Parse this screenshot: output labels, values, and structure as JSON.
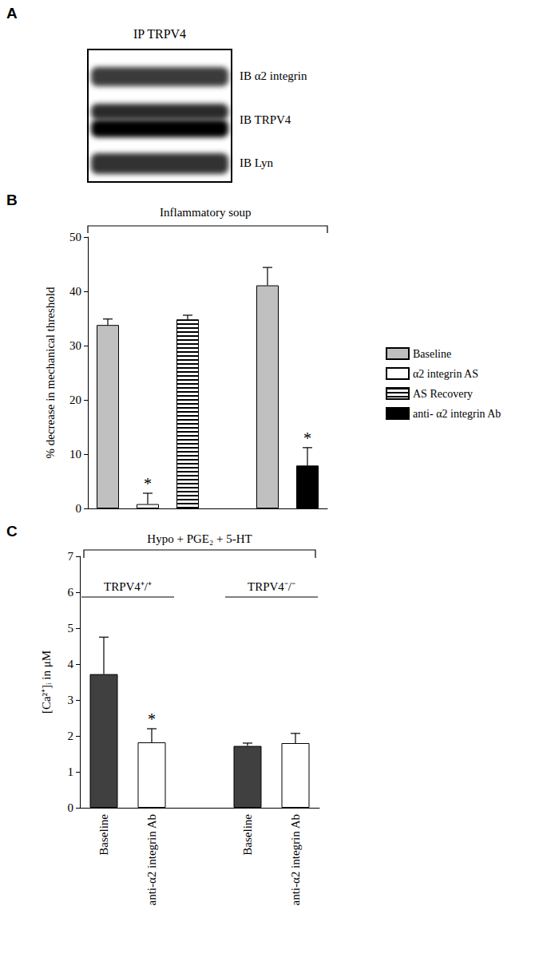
{
  "panel_labels": [
    "A",
    "B",
    "C"
  ],
  "blot": {
    "title": "IP TRPV4",
    "rows": [
      "IB α2 integrin",
      "IB TRPV4",
      "IB Lyn"
    ]
  },
  "chart_data": [
    {
      "type": "bar",
      "title": "Inflammatory soup",
      "ylabel": "% decrease in mechanical threshold",
      "categories": [
        null,
        null,
        null,
        null,
        null,
        null
      ],
      "series": [
        {
          "name": "Baseline",
          "color": "#c0c0c0",
          "values": [
            33.8,
            null,
            null,
            null,
            41.1,
            null
          ],
          "errors": [
            1.1,
            null,
            null,
            null,
            3.3,
            null
          ]
        },
        {
          "name": "α2 integrin AS",
          "color": "#ffffff",
          "values": [
            null,
            0.8,
            null,
            null,
            null,
            null
          ],
          "errors": [
            null,
            2.0,
            null,
            null,
            null,
            null
          ]
        },
        {
          "name": "AS Recovery",
          "color": "#ffffff",
          "values": [
            null,
            null,
            34.8,
            null,
            null,
            null
          ],
          "errors": [
            null,
            null,
            0.8,
            null,
            null,
            null
          ]
        },
        {
          "name": "anti- α2 integrin Ab",
          "color": "#000000",
          "values": [
            null,
            null,
            null,
            null,
            null,
            7.9
          ],
          "errors": [
            null,
            null,
            null,
            null,
            null,
            3.3
          ]
        }
      ],
      "ylim": [
        0,
        50
      ],
      "yticks": [
        0,
        10,
        20,
        30,
        40,
        50
      ],
      "grid": false,
      "legend": "right",
      "annotations": [
        {
          "text": "*",
          "index": 1
        },
        {
          "text": "*",
          "index": 5
        }
      ]
    },
    {
      "type": "bar",
      "title": "Hypo + PGE₂ + 5-HT",
      "ylabel": "[Ca²⁺]ᵢ in μM",
      "categories": [
        "Baseline",
        "anti-α2 integrin Ab",
        null,
        "Baseline",
        "anti-α2 integrin Ab"
      ],
      "values": [
        3.72,
        1.82,
        null,
        1.72,
        1.8
      ],
      "errors": [
        1.03,
        0.38,
        null,
        0.08,
        0.27
      ],
      "colors": [
        "#404040",
        "#ffffff",
        null,
        "#404040",
        "#ffffff"
      ],
      "groups": [
        {
          "label": "TRPV4⁺/⁺",
          "categories": [
            0,
            1
          ]
        },
        {
          "label": "TRPV4⁻/⁻",
          "categories": [
            3,
            4
          ]
        }
      ],
      "ylim": [
        0,
        7
      ],
      "yticks": [
        0,
        1,
        2,
        3,
        4,
        5,
        6,
        7
      ],
      "grid": false,
      "annotations": [
        {
          "text": "*",
          "index": 1
        }
      ]
    }
  ]
}
